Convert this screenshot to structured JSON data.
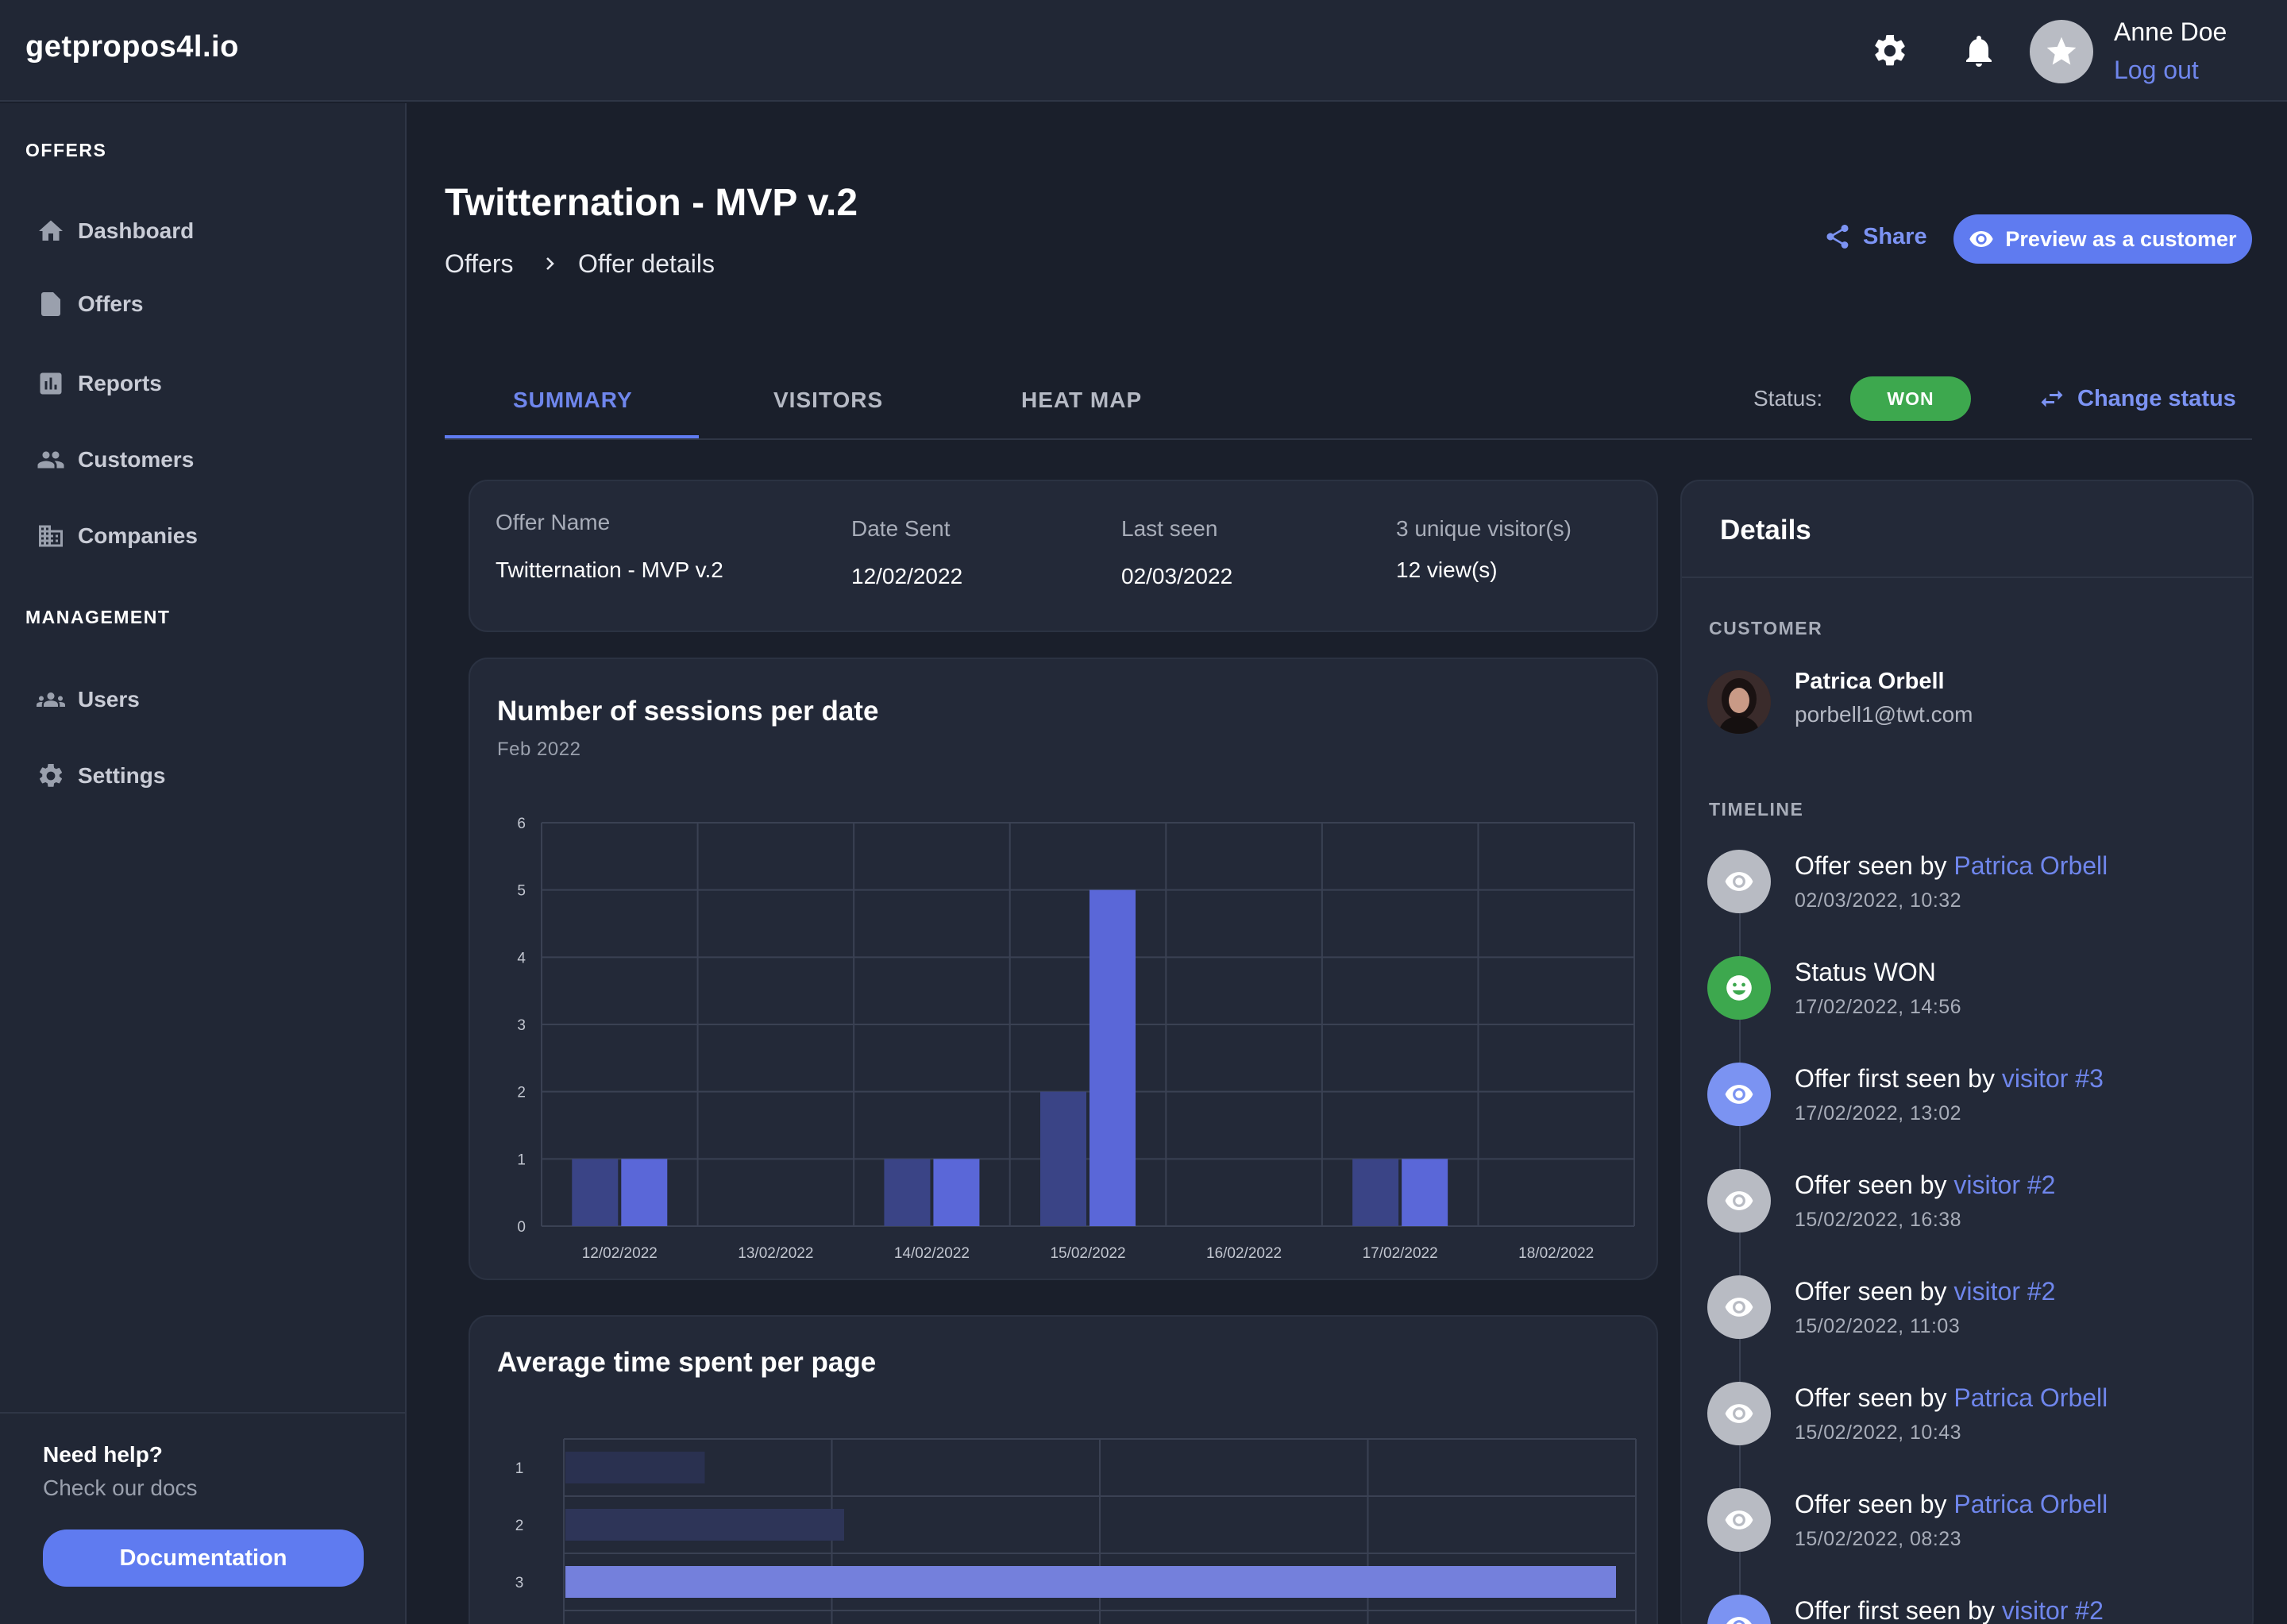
{
  "app": {
    "logo": "getpropos4l.io",
    "user": {
      "name": "Anne Doe",
      "logout_label": "Log out"
    }
  },
  "sidebar": {
    "sections": [
      {
        "title": "OFFERS",
        "items": [
          "Dashboard",
          "Offers",
          "Reports",
          "Customers",
          "Companies"
        ]
      },
      {
        "title": "MANAGEMENT",
        "items": [
          "Users",
          "Settings"
        ]
      }
    ],
    "help": {
      "title": "Need help?",
      "subtitle": "Check our docs",
      "button": "Documentation"
    }
  },
  "page": {
    "title": "Twitternation - MVP v.2",
    "breadcrumb": [
      "Offers",
      "Offer details"
    ],
    "share_label": "Share",
    "preview_label": "Preview as a customer"
  },
  "tabs": [
    "SUMMARY",
    "VISITORS",
    "HEAT MAP"
  ],
  "status": {
    "label": "Status:",
    "value": "WON",
    "change_label": "Change status"
  },
  "summary": {
    "offer_name_label": "Offer Name",
    "offer_name": "Twitternation - MVP v.2",
    "date_sent_label": "Date Sent",
    "date_sent": "12/02/2022",
    "last_seen_label": "Last seen",
    "last_seen": "02/03/2022",
    "visitors": "3 unique visitor(s)",
    "views": "12 view(s)"
  },
  "chart_data": [
    {
      "type": "bar",
      "title": "Number of sessions per date",
      "subtitle": "Feb 2022",
      "categories": [
        "12/02/2022",
        "13/02/2022",
        "14/02/2022",
        "15/02/2022",
        "16/02/2022",
        "17/02/2022",
        "18/02/2022"
      ],
      "series": [
        {
          "values": [
            1,
            0,
            1,
            2,
            0,
            1,
            0
          ],
          "color": "#3a4486"
        },
        {
          "values": [
            1,
            0,
            1,
            5,
            0,
            1,
            0
          ],
          "color": "#5a67d8"
        }
      ],
      "ylim": [
        0,
        6
      ],
      "yticks": [
        0,
        1,
        2,
        3,
        4,
        5,
        6
      ],
      "grid": true
    },
    {
      "type": "bar",
      "orientation": "horizontal",
      "title": "Average time spent per page",
      "categories": [
        "1",
        "2",
        "3"
      ],
      "values": [
        0.13,
        0.26,
        0.98
      ],
      "colors": [
        "#2a3150",
        "#2e3558",
        "#7480dc"
      ],
      "grid": true
    }
  ],
  "details": {
    "title": "Details",
    "customer_label": "CUSTOMER",
    "customer": {
      "name": "Patrica Orbell",
      "email": "porbell1@twt.com"
    },
    "timeline_label": "TIMELINE",
    "timeline": [
      {
        "text": "Offer seen by",
        "link": "Patrica Orbell",
        "time": "02/03/2022, 10:32",
        "kind": "seen"
      },
      {
        "text": "Status WON",
        "link": "",
        "time": "17/02/2022, 14:56",
        "kind": "won"
      },
      {
        "text": "Offer first seen by",
        "link": "visitor #3",
        "time": "17/02/2022, 13:02",
        "kind": "first"
      },
      {
        "text": "Offer seen by",
        "link": "visitor #2",
        "time": "15/02/2022, 16:38",
        "kind": "seen"
      },
      {
        "text": "Offer seen by",
        "link": "visitor #2",
        "time": "15/02/2022, 11:03",
        "kind": "seen"
      },
      {
        "text": "Offer seen by",
        "link": "Patrica Orbell",
        "time": "15/02/2022, 10:43",
        "kind": "seen"
      },
      {
        "text": "Offer seen by",
        "link": "Patrica Orbell",
        "time": "15/02/2022, 08:23",
        "kind": "seen"
      },
      {
        "text": "Offer first seen by",
        "link": "visitor #2",
        "time": "",
        "kind": "first"
      }
    ]
  },
  "colors": {
    "accent": "#5f7bf0",
    "won": "#3da84e",
    "background": "#1a1f2b",
    "panel": "#232938"
  }
}
